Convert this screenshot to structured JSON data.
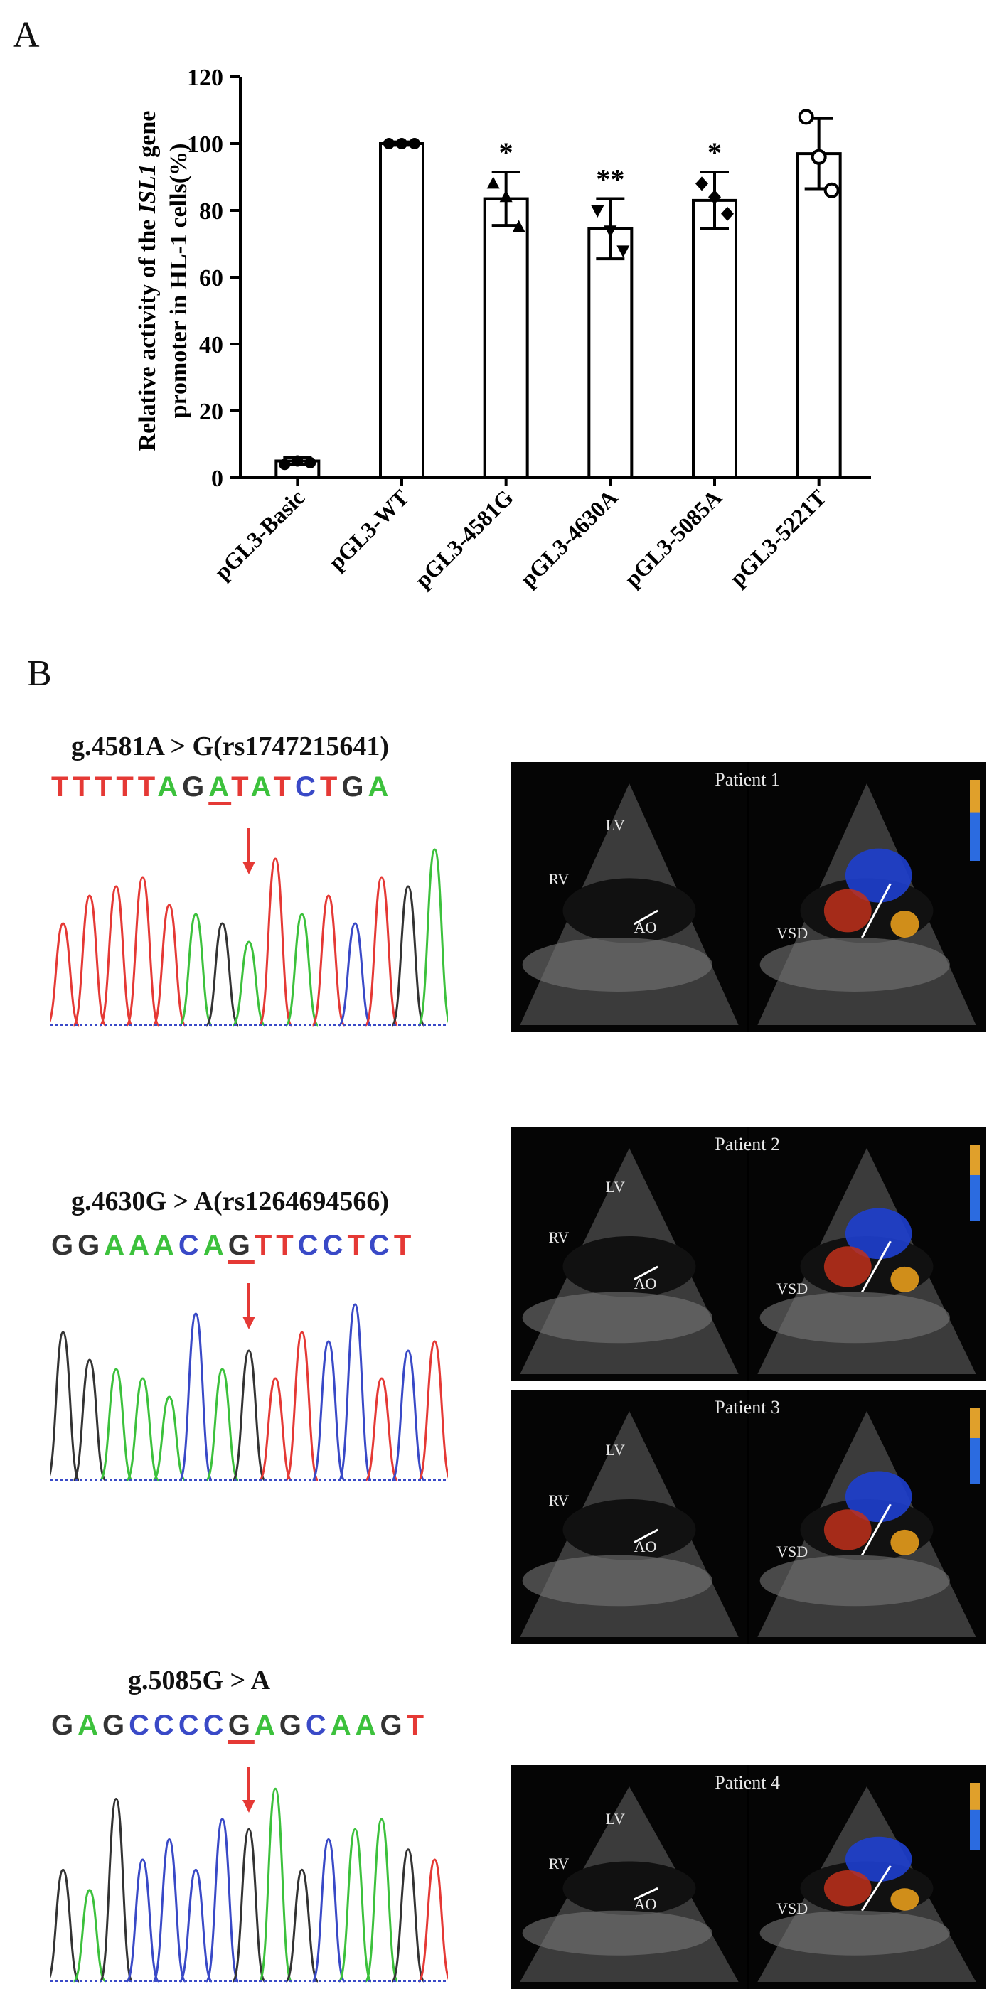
{
  "panel_a_letter": "A",
  "panel_b_letter": "B",
  "chart_data": {
    "type": "bar",
    "categories": [
      "pGL3-Basic",
      "pGL3-WT",
      "pGL3-4581G",
      "pGL3-4630A",
      "pGL3-5085A",
      "pGL3-5221T"
    ],
    "values": [
      5,
      100,
      83.5,
      74.5,
      83,
      97
    ],
    "errors": [
      1,
      0.5,
      8,
      9,
      8.5,
      10.5
    ],
    "points": [
      [
        4,
        5,
        4.5
      ],
      [
        100,
        100,
        100
      ],
      [
        88,
        84,
        75
      ],
      [
        80,
        74,
        68
      ],
      [
        88,
        84,
        79
      ],
      [
        108,
        96,
        86
      ]
    ],
    "markers": [
      "circle",
      "circle",
      "triangle",
      "triangle-down",
      "diamond",
      "circle-open"
    ],
    "significance": [
      "",
      "",
      "*",
      "**",
      "*",
      ""
    ],
    "ylabel_line1_pre": "Relative activity of the ",
    "ylabel_line1_em": "ISL1",
    "ylabel_line1_post": " gene",
    "ylabel_line2": "promoter in HL-1 cells(%)",
    "yticks": [
      0,
      20,
      40,
      60,
      80,
      100,
      120
    ],
    "ylim": [
      0,
      120
    ]
  },
  "variants": [
    {
      "title": "g.4581A > G(rs1747215641)",
      "sequence": [
        {
          "b": "T",
          "c": "#e53935"
        },
        {
          "b": "T",
          "c": "#e53935"
        },
        {
          "b": "T",
          "c": "#e53935"
        },
        {
          "b": "T",
          "c": "#e53935"
        },
        {
          "b": "T",
          "c": "#e53935"
        },
        {
          "b": "A",
          "c": "#3cc13c"
        },
        {
          "b": "G",
          "c": "#333333"
        },
        {
          "b": "A",
          "c": "#3cc13c",
          "mut": true
        },
        {
          "b": "T",
          "c": "#e53935"
        },
        {
          "b": "A",
          "c": "#3cc13c"
        },
        {
          "b": "T",
          "c": "#e53935"
        },
        {
          "b": "C",
          "c": "#3949c7"
        },
        {
          "b": "T",
          "c": "#e53935"
        },
        {
          "b": "G",
          "c": "#333333"
        },
        {
          "b": "A",
          "c": "#3cc13c"
        }
      ],
      "peaks": [
        "#e53935",
        "#e53935",
        "#e53935",
        "#e53935",
        "#e53935",
        "#3cc13c",
        "#333333",
        "#3cc13c",
        "#e53935",
        "#3cc13c",
        "#e53935",
        "#3949c7",
        "#e53935",
        "#333333",
        "#3cc13c"
      ],
      "arrow_index": 7,
      "patients": [
        {
          "name": "Patient 1",
          "labels": [
            "LV",
            "RV",
            "AO",
            "VSD"
          ]
        }
      ]
    },
    {
      "title": "g.4630G > A(rs1264694566)",
      "sequence": [
        {
          "b": "G",
          "c": "#333333"
        },
        {
          "b": "G",
          "c": "#333333"
        },
        {
          "b": "A",
          "c": "#3cc13c"
        },
        {
          "b": "A",
          "c": "#3cc13c"
        },
        {
          "b": "A",
          "c": "#3cc13c"
        },
        {
          "b": "C",
          "c": "#3949c7"
        },
        {
          "b": "A",
          "c": "#3cc13c"
        },
        {
          "b": "G",
          "c": "#333333",
          "mut": true
        },
        {
          "b": "T",
          "c": "#e53935"
        },
        {
          "b": "T",
          "c": "#e53935"
        },
        {
          "b": "C",
          "c": "#3949c7"
        },
        {
          "b": "C",
          "c": "#3949c7"
        },
        {
          "b": "T",
          "c": "#e53935"
        },
        {
          "b": "C",
          "c": "#3949c7"
        },
        {
          "b": "T",
          "c": "#e53935"
        }
      ],
      "peaks": [
        "#333333",
        "#333333",
        "#3cc13c",
        "#3cc13c",
        "#3cc13c",
        "#3949c7",
        "#3cc13c",
        "#333333",
        "#e53935",
        "#e53935",
        "#3949c7",
        "#3949c7",
        "#e53935",
        "#3949c7",
        "#e53935"
      ],
      "arrow_index": 7,
      "patients": [
        {
          "name": "Patient 2",
          "labels": [
            "LV",
            "RV",
            "AO",
            "VSD"
          ]
        },
        {
          "name": "Patient 3",
          "labels": [
            "LV",
            "RV",
            "AO",
            "VSD"
          ]
        }
      ]
    },
    {
      "title": "g.5085G > A",
      "sequence": [
        {
          "b": "G",
          "c": "#333333"
        },
        {
          "b": "A",
          "c": "#3cc13c"
        },
        {
          "b": "G",
          "c": "#333333"
        },
        {
          "b": "C",
          "c": "#3949c7"
        },
        {
          "b": "C",
          "c": "#3949c7"
        },
        {
          "b": "C",
          "c": "#3949c7"
        },
        {
          "b": "C",
          "c": "#3949c7"
        },
        {
          "b": "G",
          "c": "#333333",
          "mut": true
        },
        {
          "b": "A",
          "c": "#3cc13c"
        },
        {
          "b": "G",
          "c": "#333333"
        },
        {
          "b": "C",
          "c": "#3949c7"
        },
        {
          "b": "A",
          "c": "#3cc13c"
        },
        {
          "b": "A",
          "c": "#3cc13c"
        },
        {
          "b": "G",
          "c": "#333333"
        },
        {
          "b": "T",
          "c": "#e53935"
        }
      ],
      "peaks": [
        "#333333",
        "#3cc13c",
        "#333333",
        "#3949c7",
        "#3949c7",
        "#3949c7",
        "#3949c7",
        "#333333",
        "#3cc13c",
        "#333333",
        "#3949c7",
        "#3cc13c",
        "#3cc13c",
        "#333333",
        "#e53935"
      ],
      "arrow_index": 7,
      "patients": [
        {
          "name": "Patient 4",
          "labels": [
            "LV",
            "RV",
            "AO",
            "VSD"
          ]
        }
      ]
    }
  ]
}
